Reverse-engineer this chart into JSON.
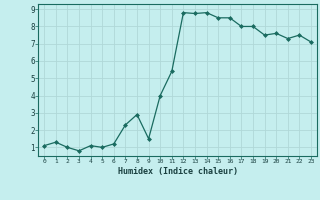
{
  "x": [
    0,
    1,
    2,
    3,
    4,
    5,
    6,
    7,
    8,
    9,
    10,
    11,
    12,
    13,
    14,
    15,
    16,
    17,
    18,
    19,
    20,
    21,
    22,
    23
  ],
  "y": [
    1.1,
    1.3,
    1.0,
    0.8,
    1.1,
    1.0,
    1.2,
    2.3,
    2.9,
    1.5,
    4.0,
    5.4,
    8.8,
    8.75,
    8.8,
    8.5,
    8.5,
    8.0,
    8.0,
    7.5,
    7.6,
    7.3,
    7.5,
    7.1
  ],
  "xlabel": "Humidex (Indice chaleur)",
  "ylim": [
    0.5,
    9.3
  ],
  "xlim": [
    -0.5,
    23.5
  ],
  "line_color": "#1a6b60",
  "bg_color": "#c5eeee",
  "grid_color": "#b0d8d8",
  "tick_label_color": "#1a4040",
  "xlabel_color": "#1a4040",
  "yticks": [
    1,
    2,
    3,
    4,
    5,
    6,
    7,
    8,
    9
  ],
  "xticks": [
    0,
    1,
    2,
    3,
    4,
    5,
    6,
    7,
    8,
    9,
    10,
    11,
    12,
    13,
    14,
    15,
    16,
    17,
    18,
    19,
    20,
    21,
    22,
    23
  ],
  "figsize": [
    3.2,
    2.0
  ],
  "dpi": 100
}
